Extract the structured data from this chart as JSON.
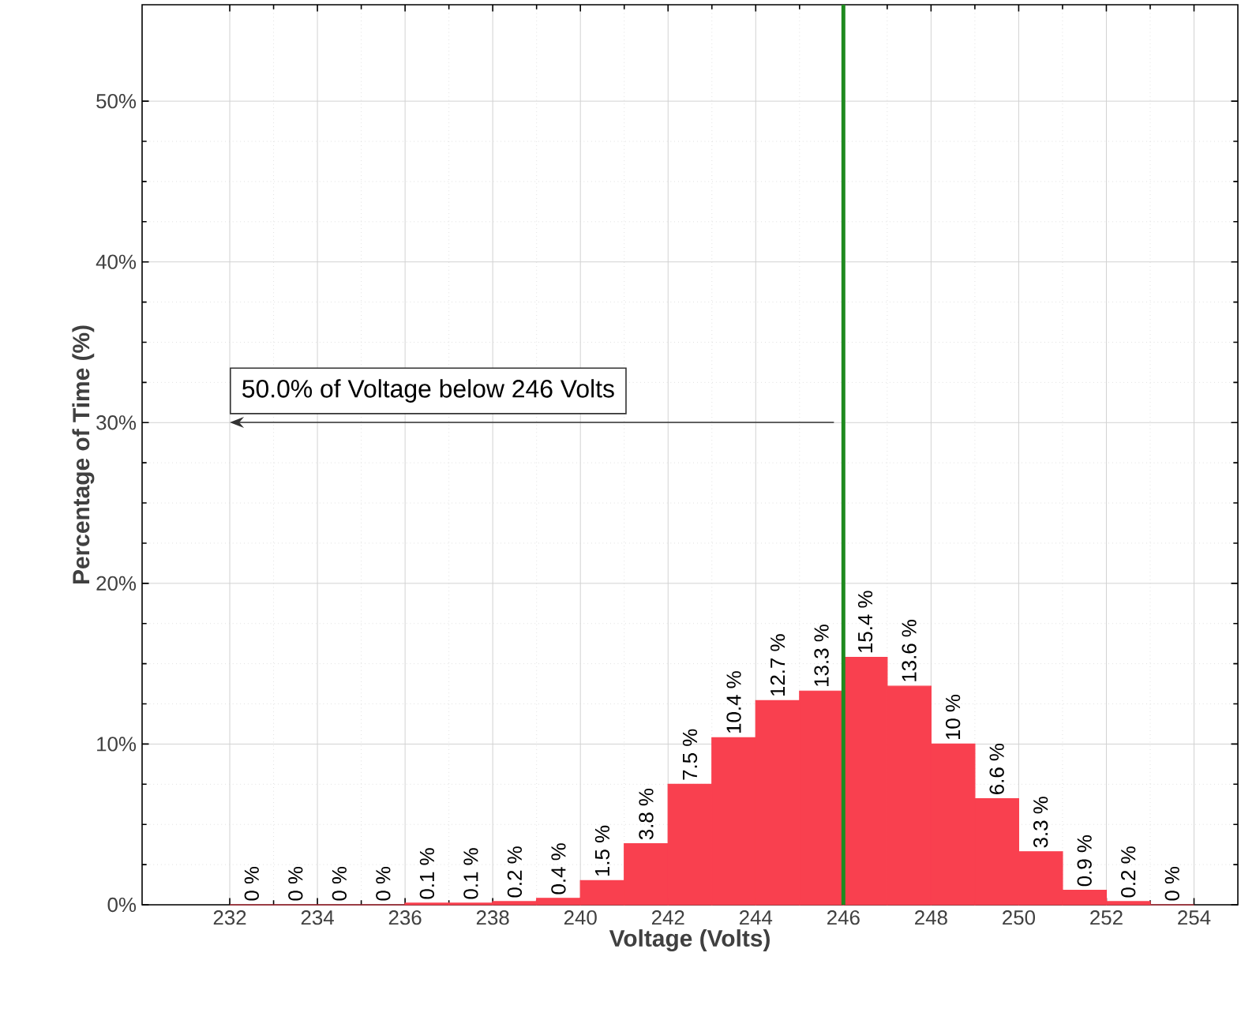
{
  "chart_data": {
    "type": "histogram",
    "xlabel": "Voltage (Volts)",
    "ylabel": "Percentage of Time (%)",
    "bins": [
      232,
      233,
      234,
      235,
      236,
      237,
      238,
      239,
      240,
      241,
      242,
      243,
      244,
      245,
      246,
      247,
      248,
      249,
      250,
      251,
      252,
      253,
      254
    ],
    "values": [
      0,
      0,
      0,
      0,
      0.1,
      0.1,
      0.2,
      0.4,
      1.5,
      3.8,
      7.5,
      10.4,
      12.7,
      13.3,
      15.4,
      13.6,
      10,
      6.6,
      3.3,
      0.9,
      0.2,
      0
    ],
    "value_labels": [
      "0 %",
      "0 %",
      "0 %",
      "0 %",
      "0.1 %",
      "0.1 %",
      "0.2 %",
      "0.4 %",
      "1.5 %",
      "3.8 %",
      "7.5 %",
      "10.4 %",
      "12.7 %",
      "13.3 %",
      "15.4 %",
      "13.6 %",
      "10 %",
      "6.6 %",
      "3.3 %",
      "0.9 %",
      "0.2 %",
      "0 %"
    ],
    "color": "#f9404f",
    "xlim": [
      230,
      255
    ],
    "ylim": [
      0,
      56
    ],
    "xticks": [
      232,
      234,
      236,
      238,
      240,
      242,
      244,
      246,
      248,
      250,
      252,
      254
    ],
    "yticks": [
      {
        "value": 0,
        "label": "0%"
      },
      {
        "value": 10,
        "label": "10%"
      },
      {
        "value": 20,
        "label": "20%"
      },
      {
        "value": 30,
        "label": "30%"
      },
      {
        "value": 40,
        "label": "40%"
      },
      {
        "value": 50,
        "label": "50%"
      }
    ],
    "grid": true,
    "ref_lines": [
      {
        "axis": "x",
        "value": 246,
        "color": "#1f8a1f"
      }
    ],
    "annotations": [
      "50.0% of Voltage below 246 Volts"
    ]
  }
}
